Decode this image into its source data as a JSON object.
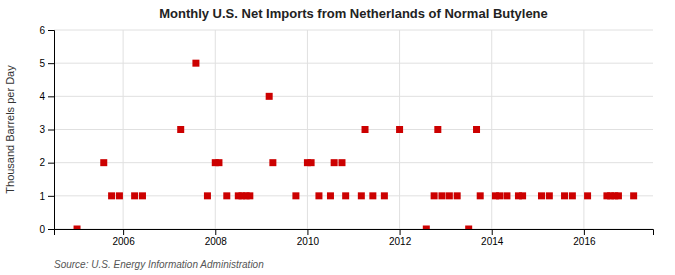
{
  "chart_data": {
    "type": "scatter",
    "title": "Monthly U.S. Net Imports from Netherlands of Normal Butylene",
    "ylabel": "Thousand Barrels per Day",
    "source": "Source: U.S. Energy Information Administration",
    "color": "#cc0000",
    "marker": "square",
    "grid": true,
    "xlim": [
      2004.5,
      2017.5
    ],
    "xticks": [
      2006,
      2008,
      2010,
      2012,
      2014,
      2016
    ],
    "ylim": [
      0,
      6
    ],
    "yticks": [
      0,
      1,
      2,
      3,
      4,
      5,
      6
    ],
    "x": [
      2005.0,
      2005.58,
      2005.75,
      2005.92,
      2006.25,
      2006.42,
      2007.25,
      2007.58,
      2007.83,
      2008.0,
      2008.08,
      2008.25,
      2008.5,
      2008.58,
      2008.67,
      2008.75,
      2009.17,
      2009.25,
      2009.75,
      2010.0,
      2010.08,
      2010.25,
      2010.5,
      2010.58,
      2010.75,
      2010.83,
      2011.17,
      2011.25,
      2011.42,
      2011.67,
      2012.0,
      2012.58,
      2012.75,
      2012.83,
      2012.92,
      2013.08,
      2013.25,
      2013.5,
      2013.67,
      2013.75,
      2014.08,
      2014.17,
      2014.33,
      2014.58,
      2014.67,
      2015.08,
      2015.25,
      2015.58,
      2015.75,
      2016.08,
      2016.5,
      2016.58,
      2016.67,
      2016.75,
      2017.08
    ],
    "values": [
      0,
      2,
      1,
      1,
      1,
      1,
      3,
      5,
      1,
      2,
      2,
      1,
      1,
      1,
      1,
      1,
      4,
      2,
      1,
      2,
      2,
      1,
      1,
      2,
      2,
      1,
      1,
      3,
      1,
      1,
      3,
      0,
      1,
      3,
      1,
      1,
      1,
      0,
      3,
      1,
      1,
      1,
      1,
      1,
      1,
      1,
      1,
      1,
      1,
      1,
      1,
      1,
      1,
      1,
      1
    ]
  }
}
